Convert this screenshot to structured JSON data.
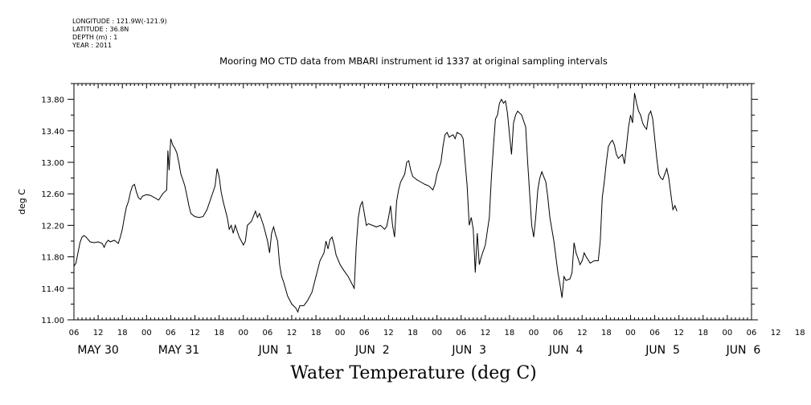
{
  "header": {
    "longitude": "LONGITUDE : 121.9W(-121.9)",
    "latitude": "LATITUDE : 36.8N",
    "depth": "DEPTH (m) : 1",
    "year": "YEAR : 2011"
  },
  "chart_data": {
    "type": "line",
    "title": "Mooring MO CTD data from MBARI instrument id 1337 at original sampling intervals",
    "xlabel": "Water Temperature (deg C)",
    "ylabel": "deg C",
    "ylim": [
      11.0,
      14.0
    ],
    "yticks": [
      "11.00",
      "11.40",
      "11.80",
      "12.20",
      "12.60",
      "13.00",
      "13.40",
      "13.80"
    ],
    "x_units": "hours since 2011-05-30 06:00",
    "xlim": [
      0,
      168
    ],
    "hour_tick_labels": [
      "06",
      "12",
      "18",
      "00",
      "06",
      "12",
      "18",
      "00",
      "06",
      "12",
      "18",
      "00",
      "06",
      "12",
      "18",
      "00",
      "06",
      "12",
      "18",
      "00",
      "06",
      "12",
      "18",
      "00",
      "06",
      "12",
      "18",
      "00",
      "06",
      "12",
      "18",
      "00",
      "06"
    ],
    "day_labels": [
      {
        "text": "MAY 30",
        "x": 6
      },
      {
        "text": "MAY 31",
        "x": 26
      },
      {
        "text": "JUN  1",
        "x": 50
      },
      {
        "text": "JUN  2",
        "x": 74
      },
      {
        "text": "JUN  3",
        "x": 98
      },
      {
        "text": "JUN  4",
        "x": 122
      },
      {
        "text": "JUN  5",
        "x": 146
      },
      {
        "text": "JUN  6",
        "x": 166
      }
    ],
    "grid": false,
    "series": [
      {
        "values": [
          [
            0,
            11.68
          ],
          [
            0.5,
            11.72
          ],
          [
            1,
            11.85
          ],
          [
            1.5,
            11.98
          ],
          [
            2,
            12.05
          ],
          [
            2.5,
            12.07
          ],
          [
            3,
            12.05
          ],
          [
            4,
            11.99
          ],
          [
            5,
            11.98
          ],
          [
            6,
            11.99
          ],
          [
            7,
            11.97
          ],
          [
            7.5,
            11.92
          ],
          [
            8,
            11.98
          ],
          [
            8.5,
            12.01
          ],
          [
            9,
            11.99
          ],
          [
            10,
            12.01
          ],
          [
            11,
            11.97
          ],
          [
            11.5,
            12.05
          ],
          [
            12,
            12.15
          ],
          [
            12.5,
            12.3
          ],
          [
            13,
            12.43
          ],
          [
            13.5,
            12.5
          ],
          [
            14,
            12.62
          ],
          [
            14.5,
            12.7
          ],
          [
            15,
            12.72
          ],
          [
            15.5,
            12.62
          ],
          [
            16,
            12.55
          ],
          [
            16.5,
            12.53
          ],
          [
            17,
            12.57
          ],
          [
            18,
            12.59
          ],
          [
            19,
            12.58
          ],
          [
            20,
            12.55
          ],
          [
            21,
            12.52
          ],
          [
            22,
            12.6
          ],
          [
            23,
            12.65
          ],
          [
            23.3,
            13.15
          ],
          [
            23.6,
            12.9
          ],
          [
            24,
            13.3
          ],
          [
            24.5,
            13.22
          ],
          [
            25,
            13.18
          ],
          [
            25.5,
            13.12
          ],
          [
            26,
            13.0
          ],
          [
            26.5,
            12.85
          ],
          [
            27,
            12.78
          ],
          [
            27.5,
            12.7
          ],
          [
            28,
            12.58
          ],
          [
            28.5,
            12.45
          ],
          [
            29,
            12.35
          ],
          [
            30,
            12.31
          ],
          [
            31,
            12.3
          ],
          [
            32,
            12.31
          ],
          [
            33,
            12.4
          ],
          [
            34,
            12.55
          ],
          [
            35,
            12.7
          ],
          [
            35.5,
            12.92
          ],
          [
            36,
            12.82
          ],
          [
            36.5,
            12.62
          ],
          [
            37,
            12.5
          ],
          [
            38,
            12.3
          ],
          [
            38.5,
            12.15
          ],
          [
            39,
            12.2
          ],
          [
            39.5,
            12.1
          ],
          [
            40,
            12.2
          ],
          [
            41,
            12.05
          ],
          [
            42,
            11.95
          ],
          [
            42.5,
            12.0
          ],
          [
            43,
            12.2
          ],
          [
            44,
            12.25
          ],
          [
            45,
            12.38
          ],
          [
            45.5,
            12.3
          ],
          [
            46,
            12.35
          ],
          [
            47,
            12.2
          ],
          [
            48,
            12.0
          ],
          [
            48.5,
            11.85
          ],
          [
            49,
            12.1
          ],
          [
            49.5,
            12.18
          ],
          [
            50,
            12.08
          ],
          [
            50.5,
            12.0
          ],
          [
            51,
            11.7
          ],
          [
            51.5,
            11.55
          ],
          [
            52,
            11.48
          ],
          [
            53,
            11.3
          ],
          [
            54,
            11.2
          ],
          [
            55,
            11.15
          ],
          [
            55.5,
            11.1
          ],
          [
            56,
            11.18
          ],
          [
            57,
            11.18
          ],
          [
            58,
            11.25
          ],
          [
            59,
            11.35
          ],
          [
            60,
            11.55
          ],
          [
            61,
            11.75
          ],
          [
            62,
            11.85
          ],
          [
            62.5,
            12.0
          ],
          [
            63,
            11.9
          ],
          [
            63.5,
            12.02
          ],
          [
            64,
            12.05
          ],
          [
            64.5,
            11.95
          ],
          [
            65,
            11.82
          ],
          [
            66,
            11.7
          ],
          [
            67,
            11.62
          ],
          [
            68,
            11.55
          ],
          [
            69,
            11.45
          ],
          [
            69.5,
            11.4
          ],
          [
            70,
            11.95
          ],
          [
            70.5,
            12.3
          ],
          [
            71,
            12.45
          ],
          [
            71.5,
            12.5
          ],
          [
            72,
            12.35
          ],
          [
            72.5,
            12.2
          ],
          [
            73,
            12.22
          ],
          [
            74,
            12.2
          ],
          [
            75,
            12.18
          ],
          [
            76,
            12.2
          ],
          [
            77,
            12.15
          ],
          [
            77.5,
            12.18
          ],
          [
            78,
            12.3
          ],
          [
            78.5,
            12.45
          ],
          [
            79,
            12.2
          ],
          [
            79.5,
            12.05
          ],
          [
            80,
            12.5
          ],
          [
            80.5,
            12.65
          ],
          [
            81,
            12.75
          ],
          [
            81.5,
            12.8
          ],
          [
            82,
            12.85
          ],
          [
            82.5,
            13.0
          ],
          [
            83,
            13.02
          ],
          [
            83.5,
            12.9
          ],
          [
            84,
            12.82
          ],
          [
            85,
            12.78
          ],
          [
            86,
            12.75
          ],
          [
            87,
            12.72
          ],
          [
            88,
            12.7
          ],
          [
            89,
            12.65
          ],
          [
            89.5,
            12.72
          ],
          [
            90,
            12.85
          ],
          [
            91,
            13.0
          ],
          [
            91.5,
            13.2
          ],
          [
            92,
            13.35
          ],
          [
            92.5,
            13.38
          ],
          [
            93,
            13.32
          ],
          [
            94,
            13.35
          ],
          [
            94.5,
            13.3
          ],
          [
            95,
            13.38
          ],
          [
            96,
            13.35
          ],
          [
            96.5,
            13.3
          ],
          [
            97,
            13.0
          ],
          [
            97.5,
            12.7
          ],
          [
            98,
            12.2
          ],
          [
            98.5,
            12.3
          ],
          [
            99,
            12.15
          ],
          [
            99.5,
            11.6
          ],
          [
            100,
            12.1
          ],
          [
            100.5,
            11.7
          ],
          [
            101,
            11.8
          ],
          [
            102,
            11.95
          ],
          [
            103,
            12.3
          ],
          [
            103.5,
            12.8
          ],
          [
            104,
            13.2
          ],
          [
            104.5,
            13.55
          ],
          [
            105,
            13.6
          ],
          [
            105.5,
            13.75
          ],
          [
            106,
            13.8
          ],
          [
            106.5,
            13.75
          ],
          [
            107,
            13.78
          ],
          [
            107.5,
            13.62
          ],
          [
            108,
            13.35
          ],
          [
            108.5,
            13.1
          ],
          [
            109,
            13.5
          ],
          [
            109.5,
            13.6
          ],
          [
            110,
            13.65
          ],
          [
            111,
            13.6
          ],
          [
            112,
            13.45
          ],
          [
            112.5,
            13.0
          ],
          [
            113,
            12.6
          ],
          [
            113.5,
            12.2
          ],
          [
            114,
            12.05
          ],
          [
            114.5,
            12.3
          ],
          [
            115,
            12.65
          ],
          [
            115.5,
            12.8
          ],
          [
            116,
            12.88
          ],
          [
            117,
            12.75
          ],
          [
            117.5,
            12.55
          ],
          [
            118,
            12.3
          ],
          [
            119,
            12.0
          ],
          [
            120,
            11.6
          ],
          [
            120.5,
            11.45
          ],
          [
            121,
            11.28
          ],
          [
            121.5,
            11.55
          ],
          [
            122,
            11.5
          ],
          [
            123,
            11.52
          ],
          [
            123.5,
            11.6
          ],
          [
            124,
            11.98
          ],
          [
            124.5,
            11.85
          ],
          [
            125,
            11.78
          ],
          [
            125.5,
            11.7
          ],
          [
            126,
            11.75
          ],
          [
            126.5,
            11.85
          ],
          [
            127,
            11.8
          ],
          [
            128,
            11.72
          ],
          [
            129,
            11.75
          ],
          [
            130,
            11.75
          ],
          [
            130.5,
            12.0
          ],
          [
            131,
            12.55
          ],
          [
            131.5,
            12.75
          ],
          [
            132,
            13.0
          ],
          [
            132.5,
            13.2
          ],
          [
            133,
            13.25
          ],
          [
            133.5,
            13.28
          ],
          [
            134,
            13.22
          ],
          [
            134.5,
            13.1
          ],
          [
            135,
            13.05
          ],
          [
            136,
            13.1
          ],
          [
            136.5,
            12.98
          ],
          [
            137,
            13.2
          ],
          [
            137.5,
            13.45
          ],
          [
            138,
            13.6
          ],
          [
            138.5,
            13.5
          ],
          [
            139,
            13.88
          ],
          [
            139.5,
            13.75
          ],
          [
            140,
            13.65
          ],
          [
            140.5,
            13.6
          ],
          [
            141,
            13.5
          ],
          [
            141.5,
            13.45
          ],
          [
            142,
            13.42
          ],
          [
            142.5,
            13.6
          ],
          [
            143,
            13.65
          ],
          [
            143.5,
            13.55
          ],
          [
            144,
            13.3
          ],
          [
            144.5,
            13.05
          ],
          [
            145,
            12.85
          ],
          [
            145.5,
            12.8
          ],
          [
            146,
            12.78
          ],
          [
            146.5,
            12.85
          ],
          [
            147,
            12.92
          ],
          [
            147.5,
            12.8
          ],
          [
            148,
            12.6
          ],
          [
            148.5,
            12.4
          ],
          [
            149,
            12.45
          ],
          [
            149.5,
            12.38
          ]
        ]
      }
    ]
  }
}
